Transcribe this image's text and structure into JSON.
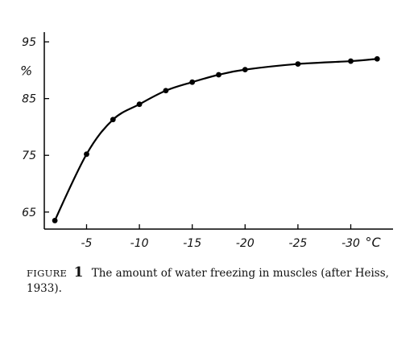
{
  "chart_data": {
    "type": "line",
    "x": [
      -2,
      -5,
      -7.5,
      -10,
      -12.5,
      -15,
      -17.5,
      -20,
      -25,
      -30,
      -32.5
    ],
    "y": [
      63.5,
      75.2,
      81.3,
      84.0,
      86.4,
      87.9,
      89.2,
      90.1,
      91.1,
      91.6,
      92.0
    ],
    "xlim": [
      -1,
      -34
    ],
    "ylim": [
      62,
      96
    ],
    "x_ticks": [
      -5,
      -10,
      -15,
      -20,
      -25,
      -30
    ],
    "x_tick_labels": [
      "-5",
      "-10",
      "-15",
      "-20",
      "-25",
      "-30"
    ],
    "x_unit": "°C",
    "y_ticks": [
      65,
      75,
      85,
      95
    ],
    "y_tick_labels": [
      "65",
      "75",
      "85",
      "95"
    ],
    "y_unit": "%",
    "grid": false,
    "legend": false
  },
  "caption": {
    "prefix": "FIGURE",
    "number": "1",
    "text": "The amount of water freezing in muscles (after Heiss, 1933)."
  }
}
